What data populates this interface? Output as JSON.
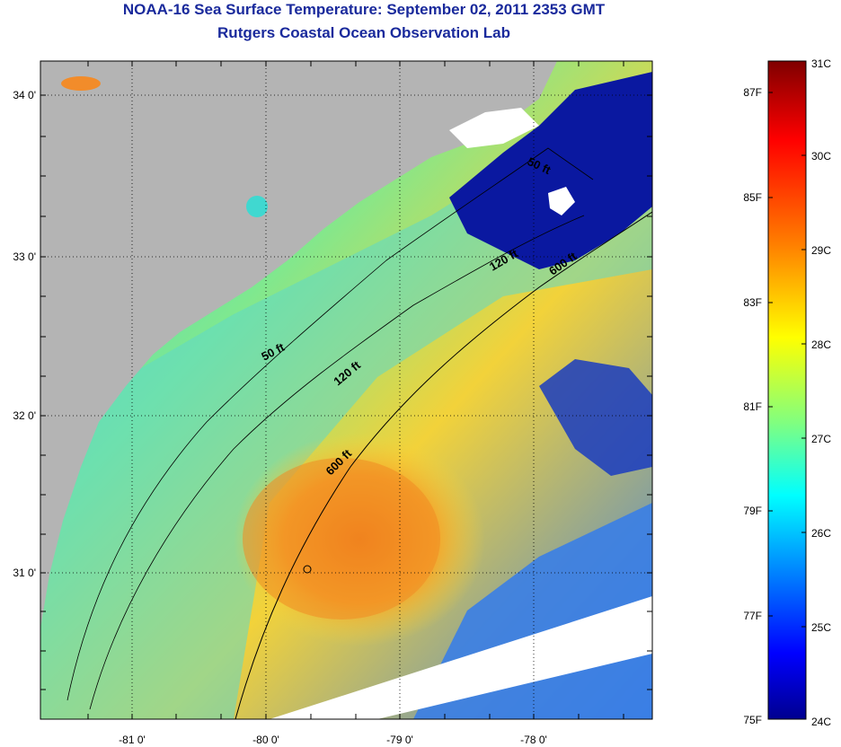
{
  "title": "NOAA-16 Sea Surface Temperature:  September 02, 2011 2353 GMT",
  "subtitle": "Rutgers Coastal Ocean Observation Lab",
  "map": {
    "lon_ticks": [
      "-81 0'",
      "-80 0'",
      "-79 0'",
      "-78 0'"
    ],
    "lat_ticks": [
      "34 0'",
      "33 0'",
      "32 0'",
      "31 0'"
    ],
    "contour_labels": [
      "50 ft",
      "120 ft",
      "600 ft",
      "50 ft",
      "120 ft",
      "600 ft"
    ],
    "land_color": "#b4b4b4",
    "nodata_color": "#ffffff"
  },
  "colorbar": {
    "fahrenheit_labels": [
      "87F",
      "85F",
      "83F",
      "81F",
      "79F",
      "77F",
      "75F"
    ],
    "celsius_labels": [
      "31C",
      "30C",
      "29C",
      "28C",
      "27C",
      "26C",
      "25C",
      "24C"
    ],
    "colors": [
      "#7f0000",
      "#ff0000",
      "#ff8000",
      "#ffff00",
      "#80ff80",
      "#00ffff",
      "#0080ff",
      "#0000ff",
      "#00008f"
    ]
  }
}
